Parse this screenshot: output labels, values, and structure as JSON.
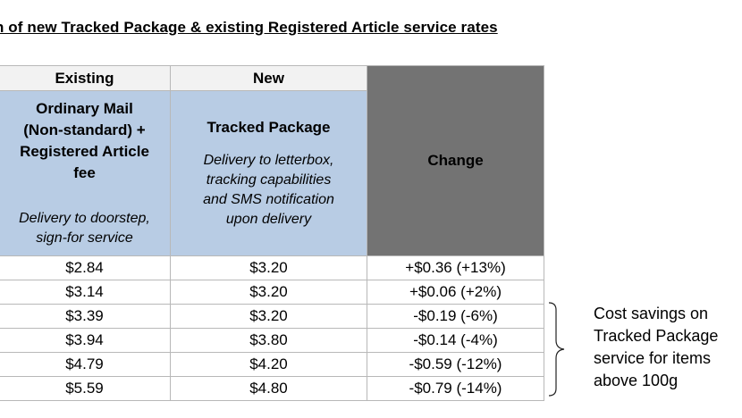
{
  "title": "n of new Tracked Package & existing Registered Article service rates",
  "headers": {
    "existing": "Existing",
    "new": "New",
    "change": "Change",
    "existing_desc_line1": "Ordinary Mail",
    "existing_desc_line2": "(Non-standard) +",
    "existing_desc_line3": "Registered Article",
    "existing_desc_line4": "fee",
    "existing_note_line1": "Delivery to doorstep,",
    "existing_note_line2": "sign-for service",
    "new_desc": "Tracked Package",
    "new_note_line1": "Delivery to letterbox,",
    "new_note_line2": "tracking capabilities",
    "new_note_line3": "and SMS notification",
    "new_note_line4": "upon delivery"
  },
  "rows": [
    {
      "existing": "$2.84",
      "new": "$3.20",
      "change": "+$0.36 (+13%)"
    },
    {
      "existing": "$3.14",
      "new": "$3.20",
      "change": "+$0.06 (+2%)"
    },
    {
      "existing": "$3.39",
      "new": "$3.20",
      "change": "-$0.19 (-6%)"
    },
    {
      "existing": "$3.94",
      "new": "$3.80",
      "change": "-$0.14 (-4%)"
    },
    {
      "existing": "$4.79",
      "new": "$4.20",
      "change": "-$0.59 (-12%)"
    },
    {
      "existing": "$5.59",
      "new": "$4.80",
      "change": "-$0.79 (-14%)"
    }
  ],
  "note": {
    "line1": "Cost savings on",
    "line2": "Tracked Package",
    "line3": "service for items",
    "line4": "above 100g"
  },
  "colors": {
    "header_blue": "#b8cce4",
    "header_grey": "#f2f2f2",
    "change_header": "#737373",
    "border": "#b8b8b8"
  }
}
